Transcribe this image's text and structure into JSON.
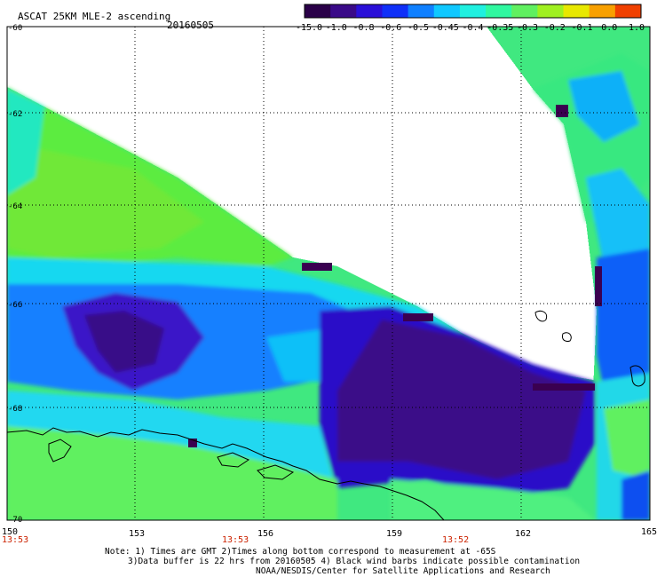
{
  "header": {
    "title": "ASCAT 25KM MLE-2 ascending",
    "date": "20160505"
  },
  "colorbar": {
    "labels": [
      "-15.0",
      "-1.0",
      "-0.8",
      "-0.6",
      "-0.5",
      "-0.45",
      "-0.4",
      "-0.35",
      "-0.3",
      "-0.2",
      "-0.1",
      "0.0",
      "1.0"
    ],
    "colors": [
      "#2a0048",
      "#3a0a88",
      "#2a10d8",
      "#1030f8",
      "#1080ff",
      "#10c8ff",
      "#20f0e0",
      "#30f8a0",
      "#60f060",
      "#a0f020",
      "#e8e800",
      "#f8a000",
      "#f04000"
    ]
  },
  "axes": {
    "lat_labels": [
      "-60",
      "-62",
      "-64",
      "-66",
      "-68",
      "-70"
    ],
    "lon_labels": [
      "150",
      "153",
      "156",
      "159",
      "162",
      "165"
    ]
  },
  "times": [
    "13:53",
    "13:53",
    "13:52"
  ],
  "footer": {
    "line1": "Note: 1) Times are GMT 2)Times along bottom correspond to measurement at -65S",
    "line2": "3)Data buffer is 22 hrs from 20160505 4) Black wind barbs indicate possible contamination",
    "line3": "NOAA/NESDIS/Center for Satellite Applications and Research"
  }
}
